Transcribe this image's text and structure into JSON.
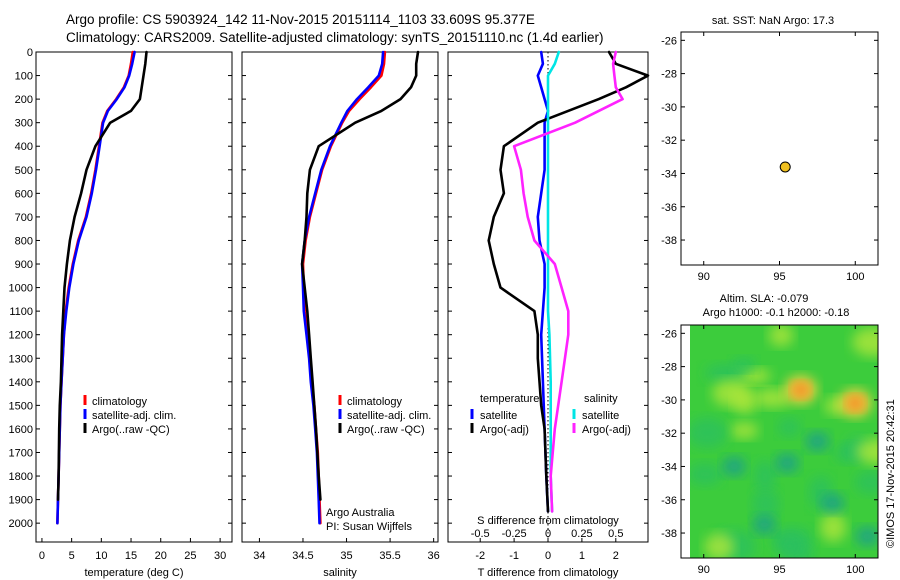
{
  "header": {
    "line1": "Argo profile: CS 5903924_142 11-Nov-2015 20151114_1103 33.609S 95.377E",
    "line2": "Climatology: CARS2009. Satellite-adjusted climatology: synTS_20151110.nc (1.4d earlier)"
  },
  "footer_stamp": "©IMOS 17-Nov-2015 20:42:31",
  "colors": {
    "climatology": "#ff0000",
    "satellite": "#0000ff",
    "argo": "#000000",
    "s_satellite": "#00e5e5",
    "s_argo": "#ff22ff",
    "marker": "#f0c020"
  },
  "chart_data": [
    {
      "id": "temperature",
      "type": "line",
      "xlabel": "temperature (deg C)",
      "ylabel": "",
      "xlim": [
        -1,
        32
      ],
      "ylim": [
        2080,
        0
      ],
      "xticks": [
        "0",
        "5",
        "10",
        "15",
        "20",
        "25",
        "30"
      ],
      "xtick_values": [
        0,
        5,
        10,
        15,
        20,
        25,
        30
      ],
      "yticks": [
        "0",
        "100",
        "200",
        "300",
        "400",
        "500",
        "600",
        "700",
        "800",
        "900",
        "1000",
        "1100",
        "1200",
        "1300",
        "1400",
        "1500",
        "1600",
        "1700",
        "1800",
        "1900",
        "2000"
      ],
      "ytick_values": [
        0,
        100,
        200,
        300,
        400,
        500,
        600,
        700,
        800,
        900,
        1000,
        1100,
        1200,
        1300,
        1400,
        1500,
        1600,
        1700,
        1800,
        1900,
        2000
      ],
      "legend": [
        "climatology",
        "satellite-adj. clim.",
        "Argo(..raw -QC)"
      ],
      "series": [
        {
          "name": "climatology",
          "color": "#ff0000",
          "x": [
            15.3,
            15.0,
            14.6,
            13.8,
            12.5,
            11.0,
            10.2,
            9.6,
            9.0,
            8.3,
            7.4,
            6.1,
            5.2,
            4.5,
            4.0,
            3.7,
            3.5,
            3.3,
            3.1,
            3.0,
            2.9,
            2.8,
            2.7,
            2.6
          ],
          "y": [
            0,
            50,
            100,
            150,
            200,
            250,
            300,
            400,
            500,
            600,
            700,
            800,
            900,
            1000,
            1100,
            1200,
            1300,
            1400,
            1500,
            1600,
            1700,
            1800,
            1900,
            2000
          ]
        },
        {
          "name": "satellite-adj. clim.",
          "color": "#0000ff",
          "x": [
            15.6,
            15.2,
            14.7,
            13.9,
            12.6,
            11.1,
            10.3,
            9.7,
            9.1,
            8.4,
            7.5,
            6.2,
            5.3,
            4.6,
            4.1,
            3.7,
            3.5,
            3.3,
            3.1,
            3.0,
            2.9,
            2.8,
            2.7,
            2.6
          ],
          "y": [
            0,
            50,
            100,
            150,
            200,
            250,
            300,
            400,
            500,
            600,
            700,
            800,
            900,
            1000,
            1100,
            1200,
            1300,
            1400,
            1500,
            1600,
            1700,
            1800,
            1900,
            2000
          ]
        },
        {
          "name": "Argo(..raw -QC)",
          "color": "#000000",
          "x": [
            17.6,
            17.4,
            17.1,
            16.8,
            16.5,
            15.0,
            11.5,
            9.0,
            7.5,
            6.6,
            5.5,
            4.7,
            4.2,
            3.8,
            3.6,
            3.4,
            3.3,
            3.2,
            3.0,
            2.9,
            2.8,
            2.7
          ],
          "y": [
            0,
            50,
            100,
            150,
            200,
            250,
            300,
            400,
            500,
            600,
            700,
            800,
            900,
            1000,
            1100,
            1200,
            1300,
            1400,
            1500,
            1600,
            1800,
            1900
          ]
        }
      ]
    },
    {
      "id": "salinity",
      "type": "line",
      "xlabel": "salinity",
      "ylabel": "",
      "xlim": [
        33.8,
        36.05
      ],
      "ylim": [
        2080,
        0
      ],
      "xticks": [
        "34",
        "34.5",
        "35",
        "35.5",
        "36"
      ],
      "xtick_values": [
        34,
        34.5,
        35,
        35.5,
        36
      ],
      "legend": [
        "climatology",
        "satellite-adj. clim.",
        "Argo(..raw -QC)"
      ],
      "annotation": [
        "Argo Australia",
        "PI: Susan Wijffels"
      ],
      "series": [
        {
          "name": "climatology",
          "color": "#ff0000",
          "x": [
            35.44,
            35.43,
            35.4,
            35.28,
            35.15,
            35.03,
            34.95,
            34.82,
            34.72,
            34.65,
            34.58,
            34.53,
            34.5,
            34.51,
            34.52,
            34.55,
            34.58,
            34.6,
            34.63,
            34.65,
            34.67,
            34.68,
            34.69,
            34.7
          ],
          "y": [
            0,
            50,
            100,
            150,
            200,
            250,
            300,
            400,
            500,
            600,
            700,
            800,
            900,
            1000,
            1100,
            1200,
            1300,
            1400,
            1500,
            1600,
            1700,
            1800,
            1900,
            2000
          ]
        },
        {
          "name": "satellite-adj. clim.",
          "color": "#0000ff",
          "x": [
            35.42,
            35.41,
            35.37,
            35.25,
            35.12,
            35.01,
            34.94,
            34.81,
            34.71,
            34.64,
            34.57,
            34.52,
            34.49,
            34.5,
            34.51,
            34.54,
            34.57,
            34.59,
            34.62,
            34.64,
            34.66,
            34.67,
            34.68,
            34.69
          ],
          "y": [
            0,
            50,
            100,
            150,
            200,
            250,
            300,
            400,
            500,
            600,
            700,
            800,
            900,
            1000,
            1100,
            1200,
            1300,
            1400,
            1500,
            1600,
            1700,
            1800,
            1900,
            2000
          ]
        },
        {
          "name": "Argo(..raw -QC)",
          "color": "#000000",
          "x": [
            35.82,
            35.8,
            35.8,
            35.74,
            35.62,
            35.4,
            35.1,
            34.68,
            34.58,
            34.55,
            34.54,
            34.52,
            34.49,
            34.52,
            34.55,
            34.57,
            34.59,
            34.61,
            34.63,
            34.65,
            34.68,
            34.7
          ],
          "y": [
            0,
            50,
            100,
            150,
            200,
            250,
            300,
            400,
            500,
            600,
            700,
            800,
            900,
            1000,
            1100,
            1200,
            1300,
            1400,
            1500,
            1600,
            1800,
            1900
          ]
        }
      ]
    },
    {
      "id": "difference",
      "type": "line",
      "xlabel": "T difference from climatology",
      "top_xlabel": "S difference from climatology",
      "xlim": [
        -2.95,
        2.95
      ],
      "ylim": [
        2080,
        0
      ],
      "xticks": [
        "-2",
        "-1",
        "0",
        "1",
        "2"
      ],
      "xtick_values": [
        -2,
        -1,
        0,
        1,
        2
      ],
      "top_xticks": [
        "-0.5",
        "-0.25",
        "0",
        "0.25",
        "0.5"
      ],
      "top_xtick_values": [
        -0.5,
        -0.25,
        0,
        0.25,
        0.5
      ],
      "legend_groups": [
        {
          "title": "temperature",
          "items": [
            "satellite",
            "Argo(-adj)"
          ]
        },
        {
          "title": "salinity",
          "items": [
            "satellite",
            "Argo(-adj)"
          ]
        }
      ],
      "series": [
        {
          "name": "satellite",
          "group": "temperature",
          "color": "#0000ff",
          "x": [
            -0.2,
            -0.15,
            -0.3,
            -0.2,
            -0.1,
            0.0,
            -0.1,
            -0.1,
            -0.1,
            -0.2,
            -0.3,
            -0.25,
            -0.1,
            -0.1,
            -0.15,
            -0.2,
            -0.15,
            -0.1,
            -0.05,
            0.0
          ],
          "y": [
            0,
            50,
            100,
            150,
            200,
            250,
            300,
            400,
            500,
            600,
            700,
            800,
            900,
            1000,
            1100,
            1200,
            1400,
            1600,
            1800,
            1950
          ]
        },
        {
          "name": "Argo(-adj)",
          "group": "temperature",
          "color": "#000000",
          "x": [
            1.8,
            1.9,
            2.0,
            2.95,
            2.3,
            1.5,
            -0.3,
            -1.3,
            -1.4,
            -1.3,
            -1.6,
            -1.75,
            -1.6,
            -1.4,
            -0.4,
            -0.3,
            -0.3,
            -0.25,
            -0.2,
            -0.1,
            -0.05,
            0.0
          ],
          "y": [
            0,
            25,
            50,
            100,
            150,
            200,
            300,
            400,
            500,
            600,
            700,
            800,
            900,
            1000,
            1100,
            1200,
            1300,
            1400,
            1500,
            1600,
            1800,
            1950
          ]
        },
        {
          "name": "satellite",
          "group": "salinity",
          "color": "#00e5e5",
          "x": [
            0.08,
            0.05,
            0.0,
            0.0,
            0.0,
            0.0,
            0.0,
            0.0,
            0.0,
            0.0,
            0.0,
            0.0,
            0.0,
            0.01,
            0.02,
            0.02,
            0.02,
            0.03
          ],
          "y": [
            0,
            50,
            100,
            200,
            300,
            400,
            500,
            600,
            700,
            800,
            900,
            1000,
            1100,
            1200,
            1400,
            1600,
            1800,
            1950
          ]
        },
        {
          "name": "Argo(-adj)",
          "group": "salinity",
          "color": "#ff22ff",
          "x": [
            0.5,
            0.48,
            0.49,
            0.5,
            0.55,
            0.2,
            -0.25,
            -0.2,
            -0.18,
            -0.15,
            -0.1,
            0.05,
            0.1,
            0.15,
            0.15,
            0.1,
            0.05,
            0.02,
            0.03
          ],
          "y": [
            0,
            50,
            100,
            150,
            200,
            300,
            400,
            500,
            600,
            700,
            800,
            900,
            1000,
            1100,
            1200,
            1400,
            1600,
            1800,
            1950
          ]
        }
      ]
    },
    {
      "id": "sst_map",
      "type": "scatter",
      "title": "sat. SST: NaN Argo: 17.3",
      "xlim": [
        88.5,
        101.5
      ],
      "ylim": [
        -39.5,
        -25.5
      ],
      "xticks": [
        "90",
        "95",
        "100"
      ],
      "xtick_values": [
        90,
        95,
        100
      ],
      "yticks": [
        "-26",
        "-28",
        "-30",
        "-32",
        "-34",
        "-36",
        "-38"
      ],
      "ytick_values": [
        -26,
        -28,
        -30,
        -32,
        -34,
        -36,
        -38
      ],
      "points": [
        {
          "x": 95.377,
          "y": -33.609
        }
      ]
    },
    {
      "id": "sla_map",
      "type": "heatmap",
      "title_line1": "Altim. SLA: -0.079",
      "title_line2": "Argo h1000: -0.1 h2000: -0.18",
      "xlim": [
        88.5,
        101.5
      ],
      "ylim": [
        -39.5,
        -25.5
      ],
      "xticks": [
        "90",
        "95",
        "100"
      ],
      "xtick_values": [
        90,
        95,
        100
      ],
      "yticks": [
        "-26",
        "-28",
        "-30",
        "-32",
        "-34",
        "-36",
        "-38"
      ],
      "ytick_values": [
        -26,
        -28,
        -30,
        -32,
        -34,
        -36,
        -38
      ],
      "field_extent": {
        "x": [
          90,
          101.5
        ],
        "y": [
          -39.5,
          -25.5
        ]
      },
      "hotspots": [
        {
          "x": 96.4,
          "y": -29.4,
          "kind": "high"
        },
        {
          "x": 100.0,
          "y": -30.2,
          "kind": "high"
        },
        {
          "x": 97.5,
          "y": -32.5,
          "kind": "low"
        },
        {
          "x": 95.5,
          "y": -33.8,
          "kind": "low"
        },
        {
          "x": 92.0,
          "y": -34.0,
          "kind": "low"
        },
        {
          "x": 98.5,
          "y": -36.2,
          "kind": "low"
        },
        {
          "x": 94.0,
          "y": -37.5,
          "kind": "low"
        },
        {
          "x": 100.8,
          "y": -38.2,
          "kind": "low"
        }
      ]
    }
  ]
}
